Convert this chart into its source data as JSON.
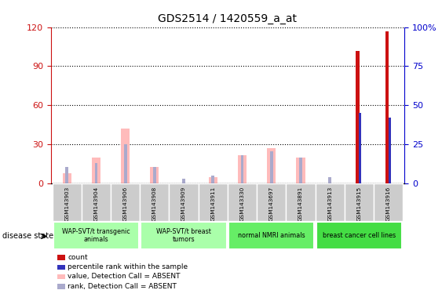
{
  "title": "GDS2514 / 1420559_a_at",
  "samples": [
    "GSM143903",
    "GSM143904",
    "GSM143906",
    "GSM143908",
    "GSM143909",
    "GSM143911",
    "GSM143330",
    "GSM143697",
    "GSM143891",
    "GSM143913",
    "GSM143915",
    "GSM143916"
  ],
  "count_values": [
    0,
    0,
    0,
    0,
    0,
    0,
    0,
    0,
    0,
    0,
    102,
    117
  ],
  "rank_values_pct": [
    0,
    0,
    0,
    0,
    0,
    0,
    0,
    0,
    0,
    0,
    45,
    42
  ],
  "absent_value": [
    8,
    20,
    42,
    13,
    0,
    5,
    22,
    27,
    20,
    0,
    0,
    0
  ],
  "absent_rank": [
    13,
    16,
    30,
    13,
    4,
    6,
    22,
    25,
    20,
    5,
    0,
    0
  ],
  "ylim_left": [
    0,
    120
  ],
  "yticks_left": [
    0,
    30,
    60,
    90,
    120
  ],
  "yticks_right": [
    0,
    25,
    50,
    75,
    100
  ],
  "group_defs": [
    {
      "label": "WAP-SVT/t transgenic\nanimals",
      "start": 0,
      "end": 3,
      "color": "#aaffaa"
    },
    {
      "label": "WAP-SVT/t breast\ntumors",
      "start": 3,
      "end": 6,
      "color": "#aaffaa"
    },
    {
      "label": "normal NMRI animals",
      "start": 6,
      "end": 9,
      "color": "#66ee66"
    },
    {
      "label": "breast cancer cell lines",
      "start": 9,
      "end": 12,
      "color": "#44dd44"
    }
  ],
  "count_color": "#cc1111",
  "rank_color": "#3333bb",
  "absent_val_color": "#ffbbbb",
  "absent_rank_color": "#aaaacc",
  "left_tick_color": "#cc1111",
  "right_tick_color": "#0000cc",
  "legend_labels": [
    "count",
    "percentile rank within the sample",
    "value, Detection Call = ABSENT",
    "rank, Detection Call = ABSENT"
  ]
}
